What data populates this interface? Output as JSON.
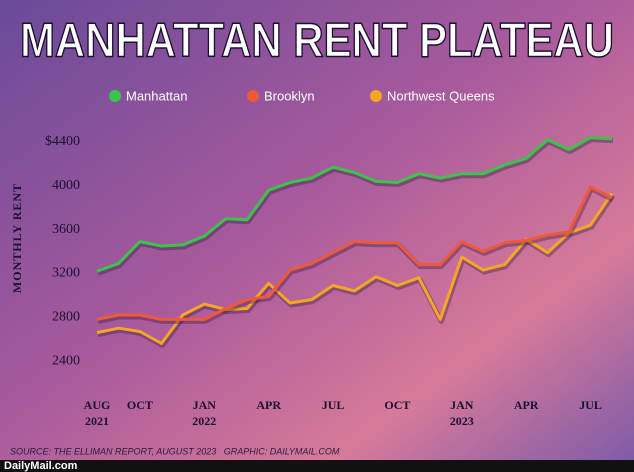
{
  "chart_data": {
    "type": "line",
    "title": "MANHATTAN RENT PLATEAU",
    "y_label": "MONTHLY RENT",
    "source": "SOURCE: THE ELLIMAN REPORT, AUGUST 2023   GRAPHIC: DAILYMAIL.COM",
    "logo": "DailyMail.com",
    "categories": [
      "AUG 2021",
      null,
      "OCT",
      null,
      null,
      "JAN 2022",
      null,
      null,
      "APR",
      null,
      null,
      "JUL",
      null,
      null,
      "OCT",
      null,
      null,
      "JAN 2023",
      null,
      null,
      "APR",
      null,
      null,
      "JUL",
      null
    ],
    "series": [
      {
        "name": "Manhattan",
        "color": "#3cc44a",
        "values": [
          3220,
          3290,
          3490,
          3450,
          3460,
          3540,
          3700,
          3690,
          3960,
          4030,
          4070,
          4170,
          4120,
          4040,
          4030,
          4110,
          4070,
          4110,
          4110,
          4190,
          4250,
          4420,
          4330,
          4440,
          4430
        ]
      },
      {
        "name": "Brooklyn",
        "color": "#f0583a",
        "values": [
          2780,
          2820,
          2820,
          2780,
          2780,
          2780,
          2880,
          2960,
          2990,
          3230,
          3290,
          3390,
          3490,
          3480,
          3480,
          3280,
          3280,
          3490,
          3400,
          3480,
          3500,
          3550,
          3580,
          3990,
          3890
        ]
      },
      {
        "name": "Northwest Queens",
        "color": "#f5a623",
        "values": [
          2660,
          2700,
          2670,
          2560,
          2820,
          2920,
          2870,
          2880,
          3110,
          2930,
          2960,
          3090,
          3040,
          3170,
          3090,
          3160,
          2780,
          3350,
          3230,
          3280,
          3510,
          3390,
          3570,
          3640,
          3930
        ]
      }
    ],
    "ylim": [
      2300,
      4500
    ],
    "yticks": [
      2400,
      2800,
      3200,
      3600,
      4000,
      {
        "value": 4400,
        "label": "$4400"
      }
    ],
    "grid": false
  }
}
